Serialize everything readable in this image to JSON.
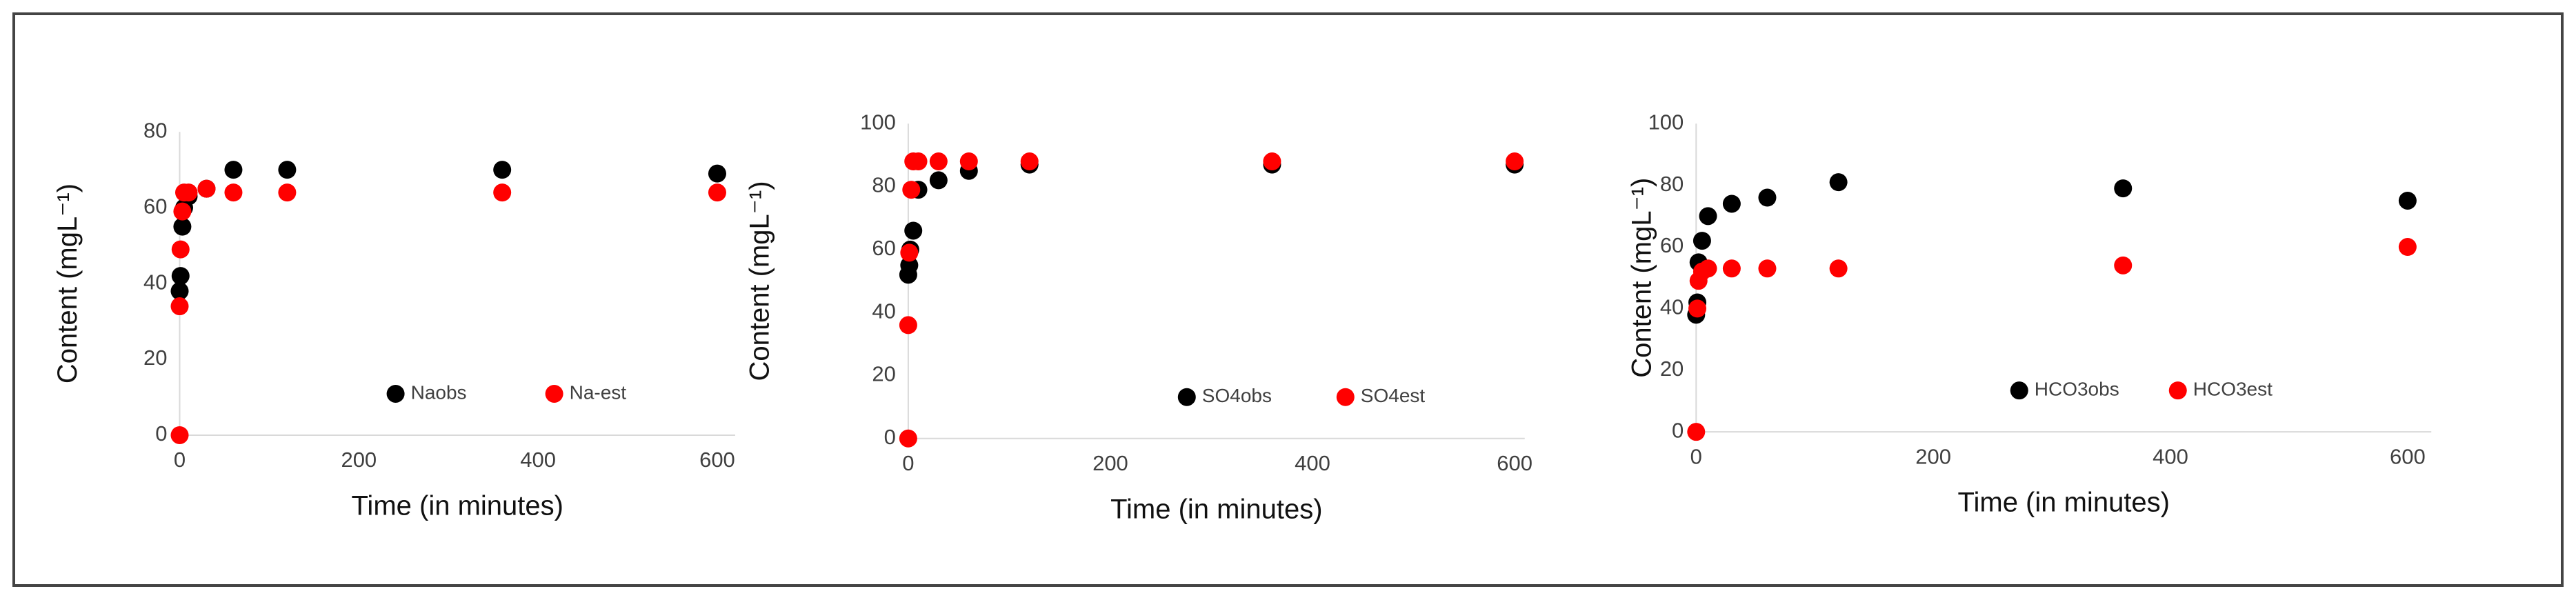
{
  "chart_data": [
    {
      "type": "scatter",
      "x_label": "Time (in minutes)",
      "y_label": "Content (mgL⁻¹)",
      "xlim": [
        0,
        620
      ],
      "ylim": [
        0,
        80
      ],
      "xticks": [
        0,
        200,
        400,
        600
      ],
      "yticks": [
        0,
        20,
        40,
        60,
        80
      ],
      "series": [
        {
          "name": "Naobs",
          "color": "#000000",
          "x": [
            0,
            1,
            3,
            5,
            10,
            30,
            60,
            120,
            360,
            600
          ],
          "values": [
            38,
            42,
            55,
            60,
            63,
            65,
            70,
            70,
            70,
            69
          ]
        },
        {
          "name": "Na-est",
          "color": "#ff0000",
          "x": [
            0,
            0,
            1,
            3,
            5,
            10,
            30,
            60,
            120,
            360,
            600
          ],
          "values": [
            0,
            34,
            49,
            59,
            64,
            64,
            65,
            64,
            64,
            64,
            64
          ]
        }
      ]
    },
    {
      "type": "scatter",
      "x_label": "Time (in minutes)",
      "y_label": "Content (mgL⁻¹)",
      "xlim": [
        0,
        610
      ],
      "ylim": [
        0,
        100
      ],
      "xticks": [
        0,
        200,
        400,
        600
      ],
      "yticks": [
        0,
        20,
        40,
        60,
        80,
        100
      ],
      "series": [
        {
          "name": "SO4obs",
          "color": "#000000",
          "x": [
            0,
            1,
            2,
            5,
            10,
            30,
            60,
            120,
            360,
            600
          ],
          "values": [
            52,
            55,
            60,
            66,
            79,
            82,
            85,
            87,
            87,
            87
          ]
        },
        {
          "name": "SO4est",
          "color": "#ff0000",
          "x": [
            0,
            0,
            1,
            3,
            5,
            10,
            30,
            60,
            120,
            360,
            600
          ],
          "values": [
            0,
            36,
            59,
            79,
            88,
            88,
            88,
            88,
            88,
            88,
            88
          ]
        }
      ]
    },
    {
      "type": "scatter",
      "x_label": "Time (in minutes)",
      "y_label": "Content (mgL⁻¹)",
      "xlim": [
        0,
        620
      ],
      "ylim": [
        0,
        100
      ],
      "xticks": [
        0,
        200,
        400,
        600
      ],
      "yticks": [
        0,
        20,
        40,
        60,
        80,
        100
      ],
      "series": [
        {
          "name": "HCO3obs",
          "color": "#000000",
          "x": [
            0,
            1,
            2,
            5,
            10,
            30,
            60,
            120,
            360,
            600
          ],
          "values": [
            38,
            42,
            55,
            62,
            70,
            74,
            76,
            81,
            79,
            75
          ]
        },
        {
          "name": "HCO3est",
          "color": "#ff0000",
          "x": [
            0,
            1,
            2,
            5,
            10,
            30,
            60,
            120,
            360,
            600
          ],
          "values": [
            0,
            40,
            49,
            52,
            53,
            53,
            53,
            53,
            54,
            60
          ]
        }
      ]
    }
  ]
}
